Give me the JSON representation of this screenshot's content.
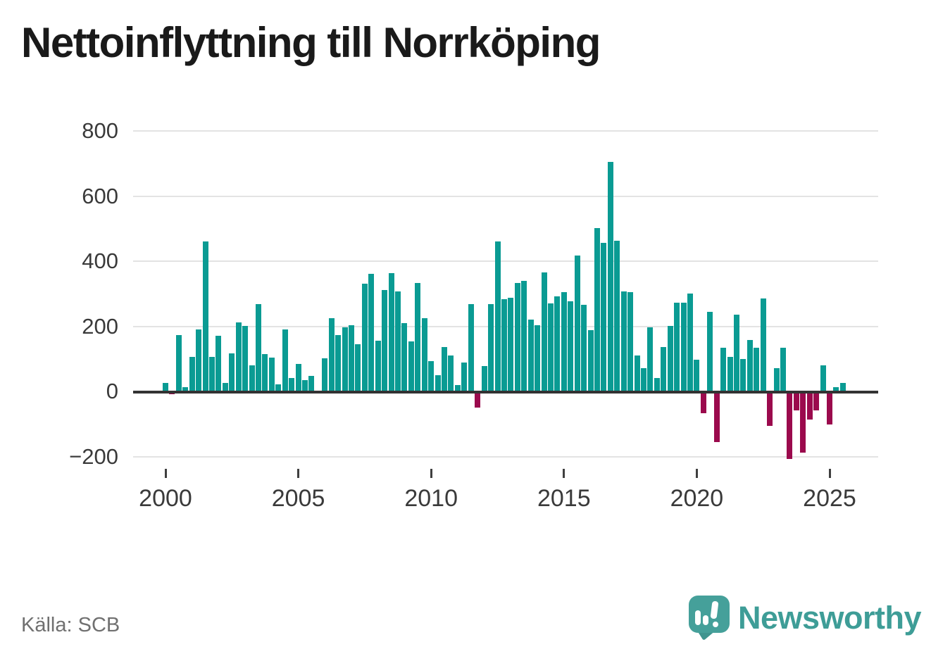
{
  "title": "Nettoinflyttning till Norrköping",
  "source": {
    "label": "Källa: SCB"
  },
  "branding": {
    "name": "Newsworthy",
    "color": "#3e9d97",
    "icon": "bar-chart-speech-bubble-icon",
    "icon_color": "#45a09a"
  },
  "chart_data": {
    "type": "bar",
    "title": "Nettoinflyttning till Norrköping",
    "xlabel": "",
    "ylabel": "",
    "frequency": "quarterly",
    "start_year": 2000,
    "start_quarter": 1,
    "values": [
      25,
      -8,
      172,
      13,
      107,
      191,
      461,
      105,
      170,
      25,
      116,
      212,
      202,
      80,
      269,
      114,
      103,
      22,
      191,
      42,
      85,
      35,
      47,
      0,
      102,
      224,
      174,
      197,
      204,
      145,
      331,
      362,
      156,
      312,
      364,
      308,
      210,
      154,
      334,
      224,
      93,
      50,
      136,
      110,
      20,
      89,
      268,
      -50,
      78,
      268,
      461,
      284,
      287,
      334,
      340,
      221,
      203,
      365,
      271,
      292,
      305,
      276,
      417,
      266,
      189,
      502,
      457,
      704,
      463,
      308,
      304,
      111,
      72,
      196,
      42,
      137,
      201,
      273,
      272,
      301,
      97,
      -66,
      245,
      -156,
      135,
      105,
      235,
      99,
      157,
      133,
      285,
      -106,
      72,
      135,
      -207,
      -59,
      -189,
      -87,
      -58,
      81,
      -101,
      14,
      27
    ],
    "x_tick_years": [
      2000,
      2005,
      2010,
      2015,
      2020,
      2025
    ],
    "y_ticks": [
      800,
      600,
      400,
      200,
      0,
      -200
    ],
    "y_tick_labels": [
      "800",
      "600",
      "400",
      "200",
      "0",
      "−200"
    ],
    "ylim": [
      -230,
      800
    ],
    "grid": true,
    "legend": false,
    "colors": {
      "positive": "#0a9b93",
      "negative": "#9b0a4d",
      "axis": "#333333",
      "gridline": "#e3e3e3",
      "tick_text": "#3a3a3a"
    }
  }
}
